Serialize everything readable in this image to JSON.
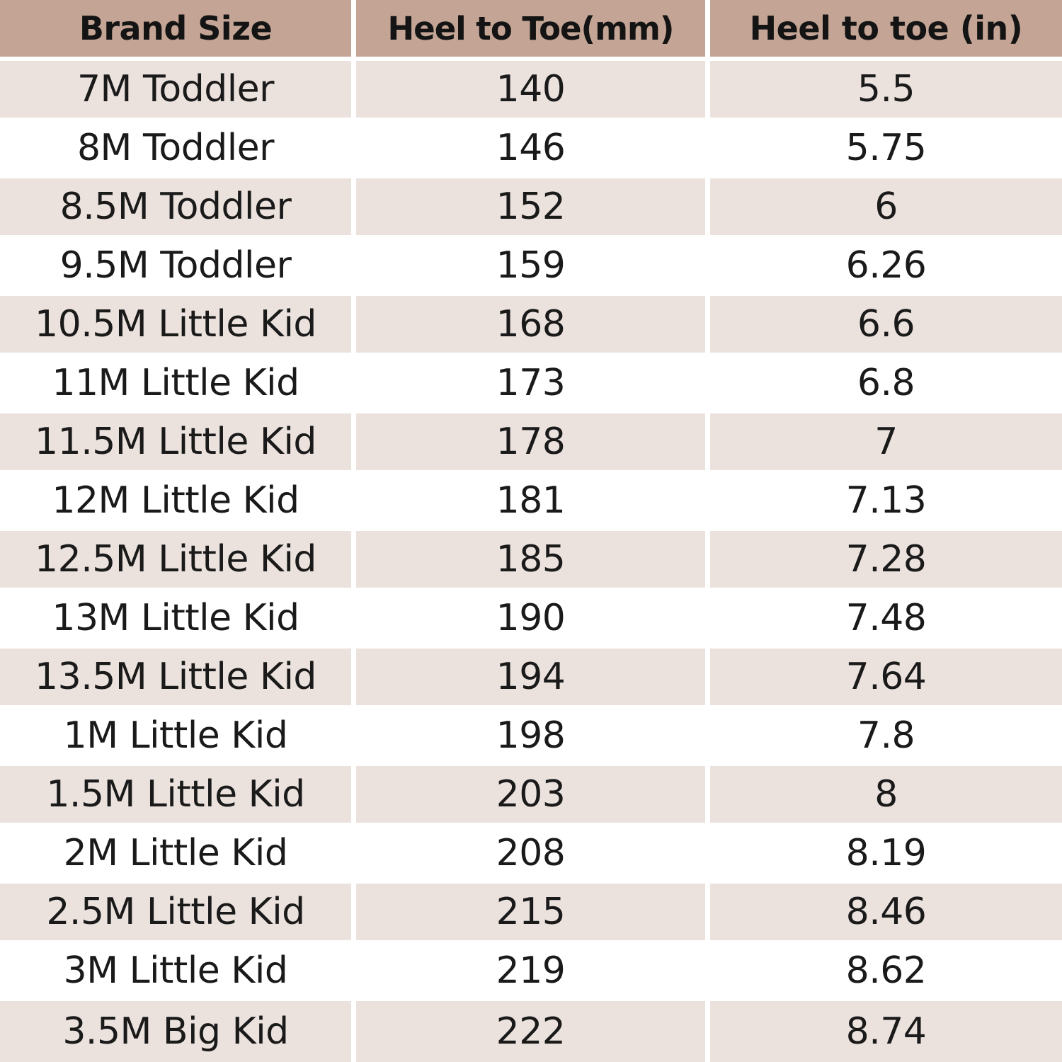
{
  "table": {
    "columns": [
      "Brand Size",
      "Heel to Toe(mm)",
      "Heel to toe (in)"
    ],
    "rows": [
      [
        "7M Toddler",
        "140",
        "5.5"
      ],
      [
        "8M Toddler",
        "146",
        "5.75"
      ],
      [
        "8.5M Toddler",
        "152",
        "6"
      ],
      [
        "9.5M Toddler",
        "159",
        "6.26"
      ],
      [
        "10.5M Little Kid",
        "168",
        "6.6"
      ],
      [
        "11M Little Kid",
        "173",
        "6.8"
      ],
      [
        "11.5M Little Kid",
        "178",
        "7"
      ],
      [
        "12M Little Kid",
        "181",
        "7.13"
      ],
      [
        "12.5M Little Kid",
        "185",
        "7.28"
      ],
      [
        "13M Little Kid",
        "190",
        "7.48"
      ],
      [
        "13.5M Little Kid",
        "194",
        "7.64"
      ],
      [
        "1M Little Kid",
        "198",
        "7.8"
      ],
      [
        "1.5M Little Kid",
        "203",
        "8"
      ],
      [
        "2M Little Kid",
        "208",
        "8.19"
      ],
      [
        "2.5M Little Kid",
        "215",
        "8.46"
      ],
      [
        "3M Little Kid",
        "219",
        "8.62"
      ],
      [
        "3.5M Big Kid",
        "222",
        "8.74"
      ]
    ]
  },
  "colors": {
    "header_bg": "#c4a595",
    "shaded_row_bg": "#ebe2dd",
    "plain_row_bg": "#ffffff",
    "text": "#1a1a1a"
  }
}
